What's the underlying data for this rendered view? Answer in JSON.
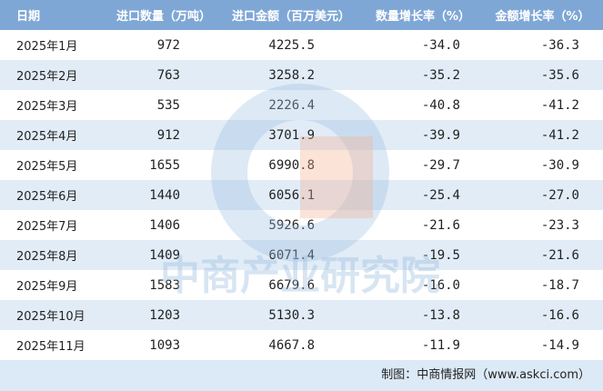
{
  "table": {
    "header": [
      "日期",
      "进口数量（万吨）",
      "进口金额（百万美元）",
      "数量增长率（%）",
      "金额增长率（%）"
    ],
    "rows": [
      [
        "2025年1月",
        "972",
        "4225.5",
        "-34.0",
        "-36.3"
      ],
      [
        "2025年2月",
        "763",
        "3258.2",
        "-35.2",
        "-35.6"
      ],
      [
        "2025年3月",
        "535",
        "2226.4",
        "-40.8",
        "-41.2"
      ],
      [
        "2025年4月",
        "912",
        "3701.9",
        "-39.9",
        "-41.2"
      ],
      [
        "2025年5月",
        "1655",
        "6990.8",
        "-29.7",
        "-30.9"
      ],
      [
        "2025年6月",
        "1440",
        "6056.1",
        "-25.4",
        "-27.0"
      ],
      [
        "2025年7月",
        "1406",
        "5926.6",
        "-21.6",
        "-23.3"
      ],
      [
        "2025年8月",
        "1409",
        "6071.4",
        "-19.5",
        "-21.6"
      ],
      [
        "2025年9月",
        "1583",
        "6679.6",
        "-16.0",
        "-18.7"
      ],
      [
        "2025年10月",
        "1203",
        "5130.3",
        "-13.8",
        "-16.6"
      ],
      [
        "2025年11月",
        "1093",
        "4667.8",
        "-11.9",
        "-14.9"
      ]
    ]
  },
  "watermark": "中商产业研究院",
  "footer": "制图：中商情报网（www.askci.com）"
}
